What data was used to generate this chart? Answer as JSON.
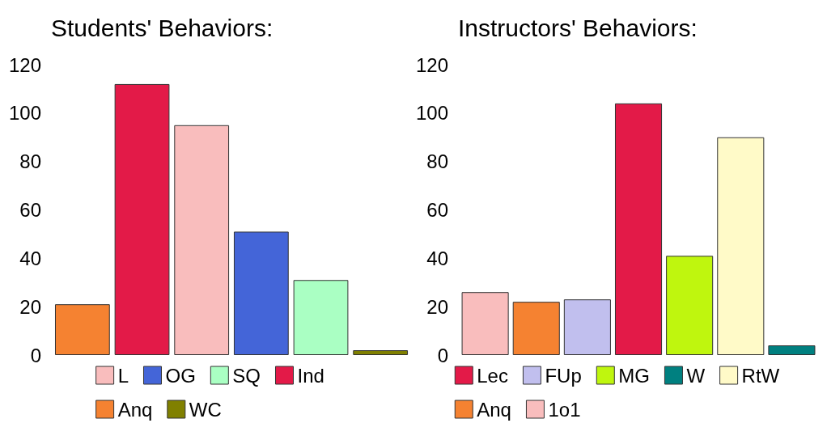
{
  "chart_data": [
    {
      "type": "bar",
      "title": "Students' Behaviors:",
      "categories": [
        null,
        null,
        null,
        null,
        null,
        null
      ],
      "stacked": true,
      "legend": "bottom",
      "tick_labels": "y",
      "ylim": [
        0,
        120
      ],
      "yticks": [
        0,
        20,
        40,
        60,
        80,
        100,
        120
      ],
      "series": [
        {
          "name": "L",
          "color": "#f9bdbd",
          "values": [
            null,
            null,
            95,
            null,
            null,
            null
          ]
        },
        {
          "name": "OG",
          "color": "#4465d8",
          "values": [
            null,
            null,
            null,
            51,
            null,
            null
          ]
        },
        {
          "name": "SQ",
          "color": "#aaffc3",
          "values": [
            null,
            null,
            null,
            null,
            31,
            null
          ]
        },
        {
          "name": "Ind",
          "color": "#e31a48",
          "values": [
            null,
            112,
            null,
            null,
            null,
            null
          ]
        },
        {
          "name": "Anq",
          "color": "#f58231",
          "values": [
            21,
            null,
            null,
            null,
            null,
            null
          ]
        },
        {
          "name": "WC",
          "color": "#808000",
          "values": [
            null,
            null,
            null,
            null,
            null,
            2
          ]
        }
      ]
    },
    {
      "type": "bar",
      "title": "Instructors' Behaviors:",
      "categories": [
        null,
        null,
        null,
        null,
        null,
        null,
        null
      ],
      "stacked": true,
      "legend": "bottom",
      "tick_labels": "y",
      "ylim": [
        0,
        120
      ],
      "yticks": [
        0,
        20,
        40,
        60,
        80,
        100,
        120
      ],
      "series": [
        {
          "name": "Lec",
          "color": "#e31a48",
          "values": [
            null,
            null,
            null,
            104,
            null,
            null,
            null
          ]
        },
        {
          "name": "FUp",
          "color": "#c1bfee",
          "values": [
            null,
            null,
            23,
            null,
            null,
            null,
            null
          ]
        },
        {
          "name": "MG",
          "color": "#bff60e",
          "values": [
            null,
            null,
            null,
            null,
            41,
            null,
            null
          ]
        },
        {
          "name": "W",
          "color": "#008080",
          "values": [
            null,
            null,
            null,
            null,
            null,
            null,
            4
          ]
        },
        {
          "name": "RtW",
          "color": "#fffac8",
          "values": [
            null,
            null,
            null,
            null,
            null,
            90,
            null
          ]
        },
        {
          "name": "Anq",
          "color": "#f58231",
          "values": [
            null,
            22,
            null,
            null,
            null,
            null,
            null
          ]
        },
        {
          "name": "1o1",
          "color": "#f9bdbd",
          "values": [
            26,
            null,
            null,
            null,
            null,
            null,
            null
          ]
        }
      ]
    }
  ]
}
